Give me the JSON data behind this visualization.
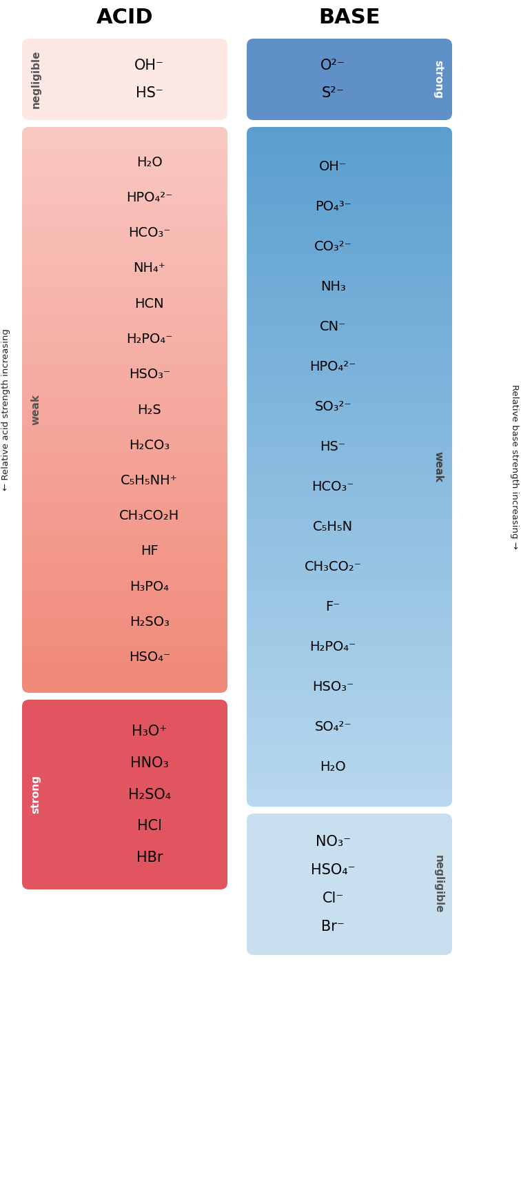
{
  "title_acid": "ACID",
  "title_base": "BASE",
  "acid_negligible": [
    "OH⁻",
    "HS⁻"
  ],
  "acid_weak": [
    "H₂O",
    "HPO₄²⁻",
    "HCO₃⁻",
    "NH₄⁺",
    "HCN",
    "H₂PO₄⁻",
    "HSO₃⁻",
    "H₂S",
    "H₂CO₃",
    "C₅H₅NH⁺",
    "CH₃CO₂H",
    "HF",
    "H₃PO₄",
    "H₂SO₃",
    "HSO₄⁻"
  ],
  "acid_strong": [
    "H₃O⁺",
    "HNO₃",
    "H₂SO₄",
    "HCl",
    "HBr"
  ],
  "base_strong": [
    "O²⁻",
    "S²⁻"
  ],
  "base_weak": [
    "OH⁻",
    "PO₄³⁻",
    "CO₃²⁻",
    "NH₃",
    "CN⁻",
    "HPO₄²⁻",
    "SO₃²⁻",
    "HS⁻",
    "HCO₃⁻",
    "C₅H₅N",
    "CH₃CO₂⁻",
    "F⁻",
    "H₂PO₄⁻",
    "HSO₃⁻",
    "SO₄²⁻",
    "H₂O"
  ],
  "base_negligible": [
    "NO₃⁻",
    "HSO₄⁻",
    "Cl⁻",
    "Br⁻"
  ],
  "acid_negl_color": "#fde8e4",
  "acid_weak_color_top": "#f9c8c2",
  "acid_weak_color_bot": "#f08878",
  "acid_strong_color": "#e05560",
  "base_strong_color": "#6090c8",
  "base_weak_color_top": "#5a9ecf",
  "base_weak_color_bot": "#b8d8ee",
  "base_negl_color": "#c8dff0"
}
